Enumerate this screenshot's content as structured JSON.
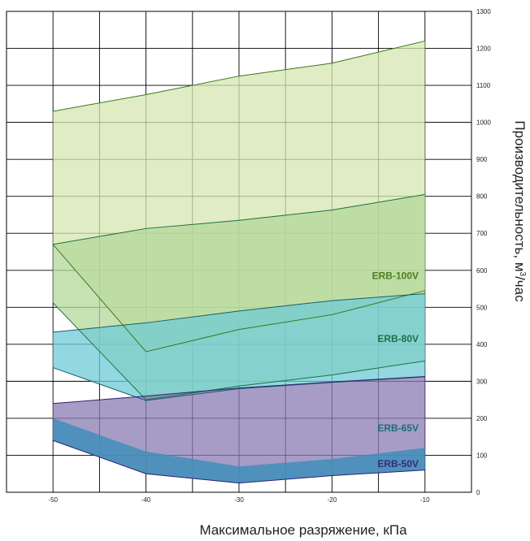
{
  "chart_data": {
    "type": "area",
    "xlabel": "Максимальное разряжение, кПа",
    "ylabel": "Производительность, м3/час",
    "ylabel_main": "Производительность, м",
    "ylabel_sup": "3",
    "ylabel_tail": "/час",
    "x_ticks": [
      "-50",
      "-40",
      "-30",
      "-20",
      "-10"
    ],
    "y_ticks": [
      "0",
      "100",
      "200",
      "300",
      "400",
      "500",
      "600",
      "700",
      "800",
      "900",
      "1000",
      "1100",
      "1200",
      "1300"
    ],
    "xlim": [
      -55,
      -5
    ],
    "ylim": [
      0,
      1300
    ],
    "grid": true,
    "x": [
      -50,
      -40,
      -30,
      -20,
      -10
    ],
    "series": [
      {
        "name": "ERB-100V",
        "label_color": "#4e7d1e",
        "fill": "#d4e6b0",
        "stroke": "#3a7a1e",
        "upper": [
          1030,
          1075,
          1125,
          1160,
          1220
        ],
        "lower": [
          670,
          380,
          440,
          480,
          545
        ]
      },
      {
        "name": "ERB-80V",
        "label_color": "#1f6e4a",
        "fill": "#b3d89a",
        "stroke": "#1f7040",
        "upper": [
          670,
          713,
          735,
          763,
          805
        ],
        "lower": [
          512,
          250,
          287,
          317,
          355
        ]
      },
      {
        "name": "ERB-65V",
        "label_color": "#1a6e7a",
        "fill": "#6fcbd6",
        "stroke": "#1a5e68",
        "upper": [
          433,
          458,
          490,
          518,
          537
        ],
        "lower": [
          337,
          248,
          280,
          297,
          312
        ]
      },
      {
        "name": "ERB-50V",
        "label_color": "#3a2a7a",
        "fill": "#8a7bb3",
        "stroke": "#2e1f73",
        "upper": [
          240,
          260,
          282,
          298,
          313
        ],
        "lower": [
          140,
          50,
          25,
          45,
          60
        ]
      }
    ],
    "extra_bands": [
      {
        "series": "ERB-65V",
        "fill": "#3f8fba",
        "upper": [
          200,
          110,
          70,
          90,
          120
        ],
        "lower": [
          140,
          50,
          25,
          45,
          60
        ]
      }
    ]
  }
}
